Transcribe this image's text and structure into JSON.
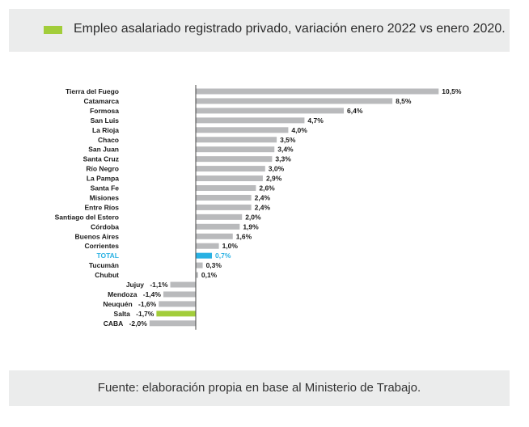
{
  "header": {
    "legend_label": "Empleo asalariado registrado privado, variación enero 2022 vs enero 2020."
  },
  "footer": {
    "source": "Fuente: elaboración propia en base al Ministerio de Trabajo."
  },
  "colors": {
    "bar_default": "#b9babc",
    "bar_total": "#29b1e3",
    "bar_highlight": "#a2cd3a",
    "label_total": "#29b1e3",
    "label_default": "#1a1a1a",
    "axis": "#444444"
  },
  "chart_data": {
    "type": "bar",
    "orientation": "horizontal",
    "title": "Empleo asalariado registrado privado, variación enero 2022 vs enero 2020.",
    "xlabel": "",
    "ylabel": "",
    "unit": "%",
    "xlim": [
      -2.0,
      10.5
    ],
    "categories": [
      "Tierra del Fuego",
      "Catamarca",
      "Formosa",
      "San Luis",
      "La Rioja",
      "Chaco",
      "San Juan",
      "Santa Cruz",
      "Río Negro",
      "La Pampa",
      "Santa Fe",
      "Misiones",
      "Entre Ríos",
      "Santiago del Estero",
      "Córdoba",
      "Buenos Aires",
      "Corrientes",
      "TOTAL",
      "Tucumán",
      "Chubut",
      "Jujuy",
      "Mendoza",
      "Neuquén",
      "Salta",
      "CABA"
    ],
    "values": [
      10.5,
      8.5,
      6.4,
      4.7,
      4.0,
      3.5,
      3.4,
      3.3,
      3.0,
      2.9,
      2.6,
      2.4,
      2.4,
      2.0,
      1.9,
      1.6,
      1.0,
      0.7,
      0.3,
      0.1,
      -1.1,
      -1.4,
      -1.6,
      -1.7,
      -2.0
    ],
    "value_labels": [
      "10,5%",
      "8,5%",
      "6,4%",
      "4,7%",
      "4,0%",
      "3,5%",
      "3,4%",
      "3,3%",
      "3,0%",
      "2,9%",
      "2,6%",
      "2,4%",
      "2,4%",
      "2,0%",
      "1,9%",
      "1,6%",
      "1,0%",
      "0,7%",
      "0,3%",
      "0,1%",
      "-1,1%",
      "-1,4%",
      "-1,6%",
      "-1,7%",
      "-2,0%"
    ],
    "highlight": {
      "total": "TOTAL",
      "legend_series": "Salta"
    }
  }
}
